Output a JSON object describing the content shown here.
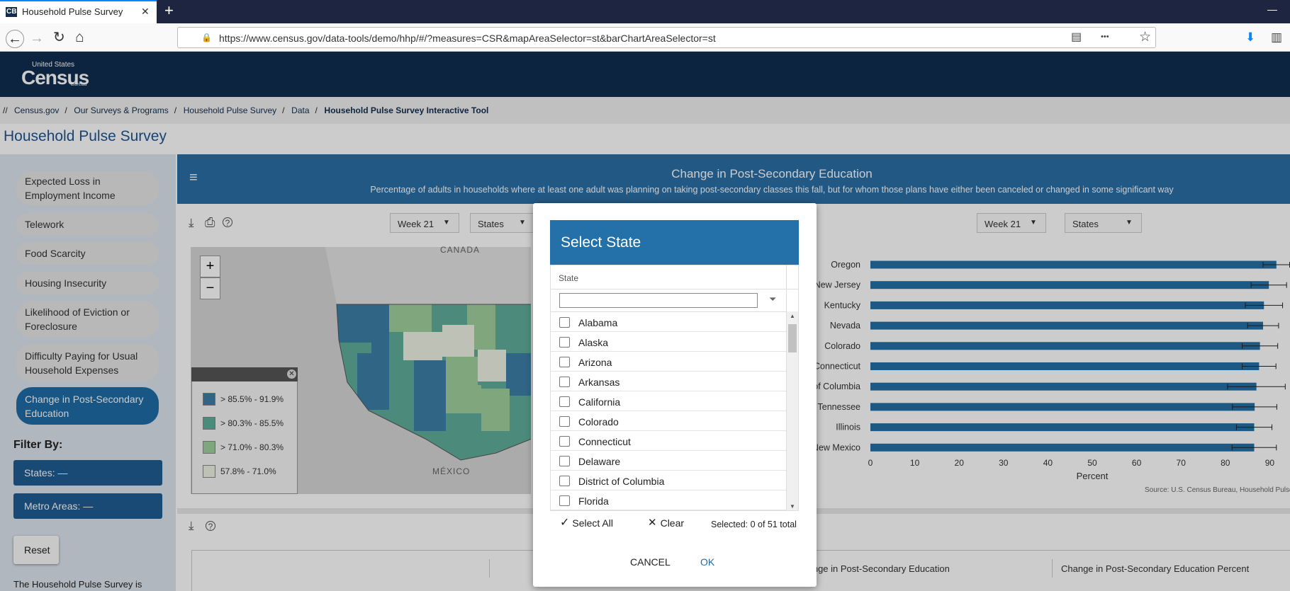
{
  "browser": {
    "tab_icon": "CB",
    "tab_title": "Household Pulse Survey",
    "url": "https://www.census.gov/data-tools/demo/hhp/#/?measures=CSR&mapAreaSelector=st&barChartAreaSelector=st"
  },
  "header": {
    "logo_top": "United States",
    "logo_main": "Census",
    "logo_bottom": "Bureau"
  },
  "breadcrumbs": [
    "Census.gov",
    "Our Surveys & Programs",
    "Household Pulse Survey",
    "Data",
    "Household Pulse Survey Interactive Tool"
  ],
  "page_title": "Household Pulse Survey",
  "sidebar": {
    "measures": [
      {
        "label": "Expected Loss in Employment Income",
        "active": false
      },
      {
        "label": "Telework",
        "active": false
      },
      {
        "label": "Food Scarcity",
        "active": false
      },
      {
        "label": "Housing Insecurity",
        "active": false
      },
      {
        "label": "Likelihood of Eviction or Foreclosure",
        "active": false
      },
      {
        "label": "Difficulty Paying for Usual Household Expenses",
        "active": false
      },
      {
        "label": "Change in Post-Secondary Education",
        "active": true
      }
    ],
    "filter_label": "Filter By:",
    "filters": [
      "States: —",
      "Metro Areas: —"
    ],
    "reset": "Reset",
    "intro": "The Household Pulse Survey is"
  },
  "panel": {
    "title": "Change in Post-Secondary Education",
    "subtitle": "Percentage of adults in households where at least one adult was planning on taking post-secondary classes this fall, but for whom those plans have either been canceled or changed in some significant way",
    "map_week": "Week 21",
    "map_area": "States",
    "chart_week": "Week 21",
    "chart_area": "States"
  },
  "map": {
    "labels": [
      "CANADA",
      "MÉXICO"
    ],
    "zoom_in": "+",
    "zoom_out": "−",
    "legend": [
      {
        "label": "> 85.5% - 91.9%",
        "color": "#3d7fa8"
      },
      {
        "label": "> 80.3% - 85.5%",
        "color": "#5fae9c"
      },
      {
        "label": "> 71.0% - 80.3%",
        "color": "#9fd09c"
      },
      {
        "label": "57.8% - 71.0%",
        "color": "#edf2e4"
      }
    ]
  },
  "bar_chart": {
    "type": "bar",
    "orientation": "horizontal",
    "categories": [
      "Oregon",
      "New Jersey",
      "Kentucky",
      "Nevada",
      "Colorado",
      "Connecticut",
      "District of Columbia",
      "Tennessee",
      "Illinois",
      "New Mexico"
    ],
    "values": [
      91.5,
      89.8,
      88.7,
      88.5,
      87.8,
      87.6,
      87.0,
      86.6,
      86.5,
      86.5
    ],
    "errors": [
      3.0,
      4.0,
      4.2,
      3.5,
      4.0,
      3.8,
      6.5,
      5.0,
      4.0,
      5.0
    ],
    "color": "#2470a6",
    "xlim": [
      0,
      100
    ],
    "xticks": [
      0,
      10,
      20,
      30,
      40,
      50,
      60,
      70,
      80,
      90
    ],
    "xlabel": "Percent",
    "source": "Source: U.S. Census Bureau, Household Pulse S"
  },
  "table": {
    "columns": [
      "Change in Post-Secondary Education",
      "Change in Post-Secondary Education Percent"
    ]
  },
  "dialog": {
    "title": "Select State",
    "column": "State",
    "states": [
      "Alabama",
      "Alaska",
      "Arizona",
      "Arkansas",
      "California",
      "Colorado",
      "Connecticut",
      "Delaware",
      "District of Columbia",
      "Florida"
    ],
    "select_all": "Select All",
    "clear": "Clear",
    "selected": "Selected: 0 of 51 total",
    "cancel": "CANCEL",
    "ok": "OK"
  }
}
